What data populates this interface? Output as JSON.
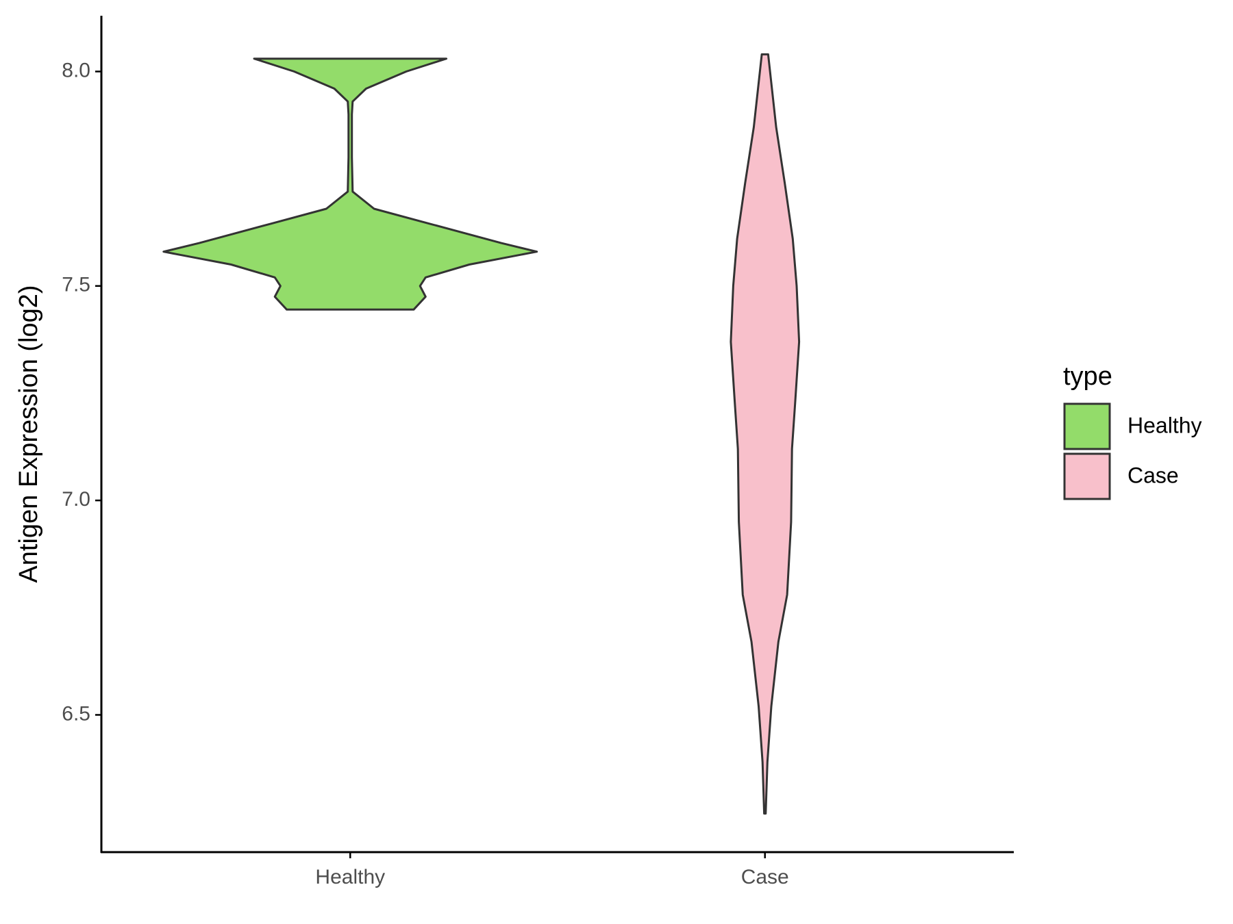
{
  "chart_data": {
    "type": "violin",
    "y_label": "Antigen Expression (log2)",
    "categories": [
      "Healthy",
      "Case"
    ],
    "legend_title": "type",
    "legend": "right",
    "ylim": [
      6.18,
      8.13
    ],
    "yticks": [
      {
        "value": 6.5,
        "label": "6.5"
      },
      {
        "value": 7,
        "label": "7.0"
      },
      {
        "value": 7.5,
        "label": "7.5"
      },
      {
        "value": 8,
        "label": "8.0"
      }
    ],
    "grid": false,
    "series": [
      {
        "name": "Healthy",
        "color": "#93dc6a",
        "y": [
          8.03,
          8.0,
          7.96,
          7.93,
          7.9,
          7.8,
          7.72,
          7.68,
          7.645,
          7.6,
          7.58,
          7.55,
          7.52,
          7.5,
          7.475,
          7.445
        ],
        "width": [
          0.515,
          0.3,
          0.085,
          0.013,
          0.009,
          0.009,
          0.013,
          0.128,
          0.426,
          0.809,
          1.0,
          0.638,
          0.404,
          0.374,
          0.404,
          0.34
        ]
      },
      {
        "name": "Case",
        "color": "#f8c0cb",
        "y": [
          8.04,
          7.87,
          7.74,
          7.61,
          7.5,
          7.37,
          7.23,
          7.12,
          6.95,
          6.78,
          6.67,
          6.52,
          6.39,
          6.27
        ],
        "width": [
          0.017,
          0.06,
          0.106,
          0.149,
          0.17,
          0.183,
          0.162,
          0.145,
          0.14,
          0.119,
          0.072,
          0.034,
          0.013,
          0.004
        ]
      }
    ]
  }
}
